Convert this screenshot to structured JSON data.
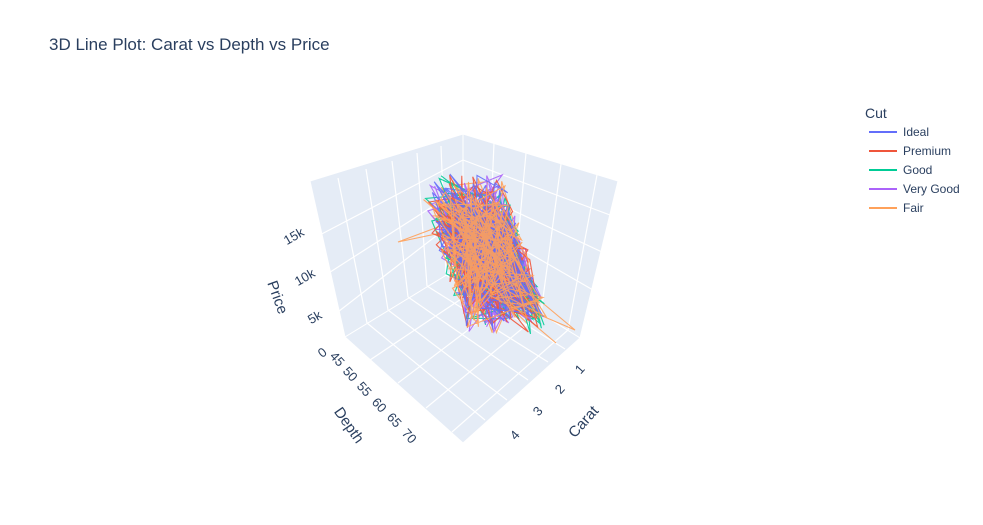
{
  "chart_data": {
    "type": "line",
    "title": "3D Line Plot: Carat vs Depth vs Price",
    "axes": {
      "x": {
        "label": "Carat",
        "ticks": [
          "1",
          "2",
          "3",
          "4"
        ]
      },
      "y": {
        "label": "Depth",
        "ticks": [
          "45",
          "50",
          "55",
          "60",
          "65",
          "70"
        ]
      },
      "z": {
        "label": "Price",
        "ticks": [
          "0",
          "5k",
          "10k",
          "15k"
        ]
      }
    },
    "legend": {
      "title": "Cut",
      "placement": "top-right",
      "entries": [
        {
          "name": "Ideal",
          "color": "#636efa"
        },
        {
          "name": "Premium",
          "color": "#ef553b"
        },
        {
          "name": "Good",
          "color": "#00cc96"
        },
        {
          "name": "Very Good",
          "color": "#ab63fa"
        },
        {
          "name": "Fair",
          "color": "#ffa15a"
        }
      ]
    },
    "grid": true,
    "background": "#e5ecf6"
  }
}
